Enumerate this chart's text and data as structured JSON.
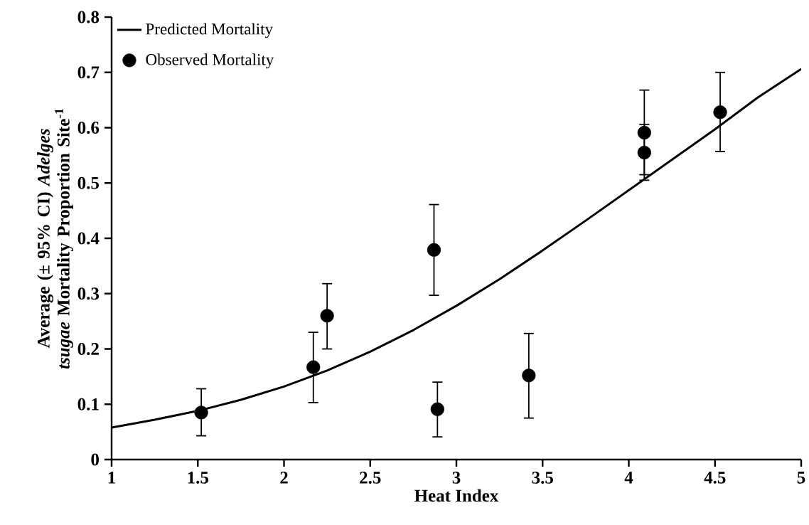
{
  "chart_data": {
    "type": "scatter",
    "xlabel": "Heat Index",
    "ylabel": "Average (± 95% CI) *Adelges tsugae* Mortality Proportion Site$^{-1}$",
    "xlim": [
      1,
      5
    ],
    "xticks": [
      1,
      1.5,
      2,
      2.5,
      3,
      3.5,
      4,
      4.5,
      5
    ],
    "ylim": [
      0,
      0.8
    ],
    "yticks": [
      0,
      0.1,
      0.2,
      0.3,
      0.4,
      0.5,
      0.6,
      0.7,
      0.8
    ],
    "grid": false,
    "legend": "top left",
    "series": [
      {
        "name": "Predicted Mortality",
        "type": "line",
        "color": "#000000",
        "marker": "none",
        "line_style": "solid",
        "x": [
          1,
          1.25,
          1.5,
          1.75,
          2,
          2.25,
          2.5,
          2.75,
          3,
          3.25,
          3.5,
          3.75,
          4,
          4.25,
          4.5,
          4.75,
          5
        ],
        "values": [
          0.058,
          0.072,
          0.088,
          0.108,
          0.132,
          0.161,
          0.195,
          0.234,
          0.278,
          0.326,
          0.378,
          0.432,
          0.487,
          0.542,
          0.597,
          0.655,
          0.706
        ]
      },
      {
        "name": "Observed Mortality",
        "color": "#000000",
        "marker": "circle",
        "x": [
          1.52,
          2.17,
          2.25,
          2.87,
          2.89,
          3.42,
          4.09,
          4.09,
          4.53
        ],
        "values": [
          0.085,
          0.167,
          0.26,
          0.379,
          0.091,
          0.152,
          0.555,
          0.591,
          0.628
        ],
        "errors": [
          [
            0.043,
            0.128
          ],
          [
            0.103,
            0.23
          ],
          [
            0.2,
            0.318
          ],
          [
            0.297,
            0.461
          ],
          [
            0.041,
            0.14
          ],
          [
            0.075,
            0.228
          ],
          [
            0.505,
            0.606
          ],
          [
            0.515,
            0.668
          ],
          [
            0.557,
            0.7
          ]
        ]
      }
    ]
  }
}
